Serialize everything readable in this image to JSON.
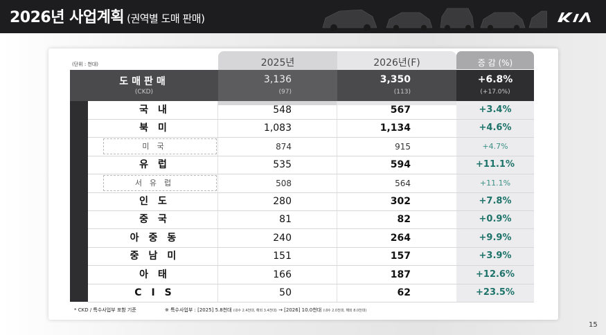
{
  "header": {
    "title": "2026년 사업계획",
    "subtitle": "(권역별 도매 판매)"
  },
  "table": {
    "unit": "(단위 : 천대)",
    "col_2025": "2025년",
    "col_2026": "2026년(F)",
    "col_change": "증 감 (%)",
    "total": {
      "name": "도매판매",
      "sub": "(CKD)",
      "v2025": "3,136",
      "v2025_sub": "(97)",
      "v2026": "3,350",
      "v2026_sub": "(113)",
      "change": "+6.8%",
      "change_sub": "(+17.0%)"
    },
    "rows": [
      {
        "name": "국내",
        "v2025": "548",
        "v2026": "567",
        "change": "+3.4%",
        "sub": false
      },
      {
        "name": "북미",
        "v2025": "1,083",
        "v2026": "1,134",
        "change": "+4.6%",
        "sub": false
      },
      {
        "name": "미국",
        "v2025": "874",
        "v2026": "915",
        "change": "+4.7%",
        "sub": true
      },
      {
        "name": "유럽",
        "v2025": "535",
        "v2026": "594",
        "change": "+11.1%",
        "sub": false
      },
      {
        "name": "서유럽",
        "v2025": "508",
        "v2026": "564",
        "change": "+11.1%",
        "sub": true
      },
      {
        "name": "인도",
        "v2025": "280",
        "v2026": "302",
        "change": "+7.8%",
        "sub": false
      },
      {
        "name": "중국",
        "v2025": "81",
        "v2026": "82",
        "change": "+0.9%",
        "sub": false
      },
      {
        "name": "아중동",
        "v2025": "240",
        "v2026": "264",
        "change": "+9.9%",
        "sub": false
      },
      {
        "name": "중남미",
        "v2025": "151",
        "v2026": "157",
        "change": "+3.9%",
        "sub": false
      },
      {
        "name": "아태",
        "v2025": "166",
        "v2026": "187",
        "change": "+12.6%",
        "sub": false
      },
      {
        "name": "CIS",
        "v2025": "50",
        "v2026": "62",
        "change": "+23.5%",
        "sub": false
      }
    ]
  },
  "footnote": {
    "left": "* CKD / 특수사업부 포함 기준",
    "right_prefix": "※ 특수사업부 : [2025] 5.8천대",
    "right_2025_detail": "(내수 2.4천대, 해외 3.4천대)",
    "arrow": "→",
    "right_2026": "[2026] 10.0천대",
    "right_2026_detail": "(내수 2.0천대, 해외 8.0천대)"
  },
  "page_number": "15",
  "colors": {
    "header_bg": "#1d1d1f",
    "change_text": "#1d7369",
    "dark_row": "#2e2e30"
  }
}
